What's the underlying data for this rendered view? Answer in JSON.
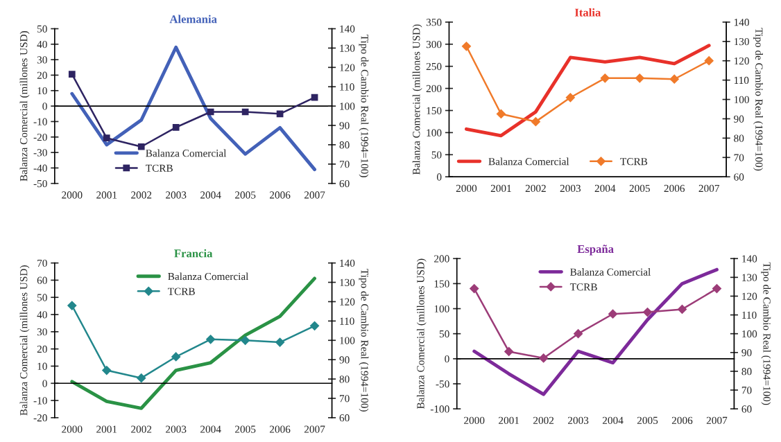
{
  "chart_data": [
    {
      "type": "line",
      "title": "Alemania",
      "categories": [
        "2000",
        "2001",
        "2002",
        "2003",
        "2004",
        "2005",
        "2006",
        "2007"
      ],
      "ylabel": "Balanza Comercial (millones USD)",
      "y2label": "Tipo de Cambio Real (1994=100)",
      "ylim": [
        -50,
        50
      ],
      "yticks": [
        -50,
        -40,
        -30,
        -20,
        -10,
        0,
        10,
        20,
        30,
        40,
        50
      ],
      "y2lim": [
        60,
        140
      ],
      "y2ticks": [
        60,
        70,
        80,
        90,
        100,
        110,
        120,
        130,
        140
      ],
      "legend": "bottom",
      "series": [
        {
          "name": "Balanza Comercial",
          "color": "#4361b8",
          "marker": "none",
          "values": [
            8,
            -25,
            -9,
            38,
            -8,
            -31,
            -14,
            -41
          ]
        },
        {
          "name": "TCRB",
          "color": "#2e2462",
          "marker": "square",
          "axis": "y2",
          "values": [
            116.5,
            83.5,
            79,
            89,
            97,
            97,
            96,
            104.5
          ]
        }
      ]
    },
    {
      "type": "line",
      "title": "Italia",
      "categories": [
        "2000",
        "2001",
        "2002",
        "2003",
        "2004",
        "2005",
        "2006",
        "2007"
      ],
      "ylabel": "Balanza Comercial (millones USD)",
      "y2label": "Tipo de Cambio Real (1994=100)",
      "ylim": [
        0,
        350
      ],
      "yticks": [
        0,
        50,
        100,
        150,
        200,
        250,
        300,
        350
      ],
      "y2lim": [
        60,
        140
      ],
      "y2ticks": [
        60,
        70,
        80,
        90,
        100,
        110,
        120,
        130,
        140
      ],
      "legend": "bottom left",
      "series": [
        {
          "name": "Balanza Comercial",
          "color": "#e8312a",
          "marker": "none",
          "values": [
            108,
            93,
            147,
            270,
            260,
            270,
            256,
            297
          ]
        },
        {
          "name": "TCRB",
          "color": "#f07a2a",
          "marker": "diamond",
          "axis": "y2",
          "values": [
            127.5,
            92.5,
            88.5,
            101,
            111,
            111,
            110.5,
            120
          ]
        }
      ]
    },
    {
      "type": "line",
      "title": "Francia",
      "categories": [
        "2000",
        "2001",
        "2002",
        "2003",
        "2004",
        "2005",
        "2006",
        "2007"
      ],
      "ylabel": "Balanza Comercial (millones USD)",
      "y2label": "Tipo de Cambio Real (1994=100)",
      "ylim": [
        -20,
        70
      ],
      "yticks": [
        -20,
        -10,
        0,
        10,
        20,
        30,
        40,
        50,
        60,
        70
      ],
      "y2lim": [
        60,
        140
      ],
      "y2ticks": [
        60,
        70,
        80,
        90,
        100,
        110,
        120,
        130,
        140
      ],
      "legend": "top",
      "series": [
        {
          "name": "Balanza Comercial",
          "color": "#2a9245",
          "marker": "none",
          "values": [
            1,
            -10.5,
            -14.5,
            7.5,
            12,
            28,
            39,
            61
          ]
        },
        {
          "name": "TCRB",
          "color": "#22878c",
          "marker": "diamond",
          "axis": "y2",
          "values": [
            118,
            84.5,
            80.5,
            91.5,
            100.5,
            100,
            99,
            107.5
          ]
        }
      ]
    },
    {
      "type": "line",
      "title": "España",
      "categories": [
        "2000",
        "2001",
        "2002",
        "2003",
        "2004",
        "2005",
        "2006",
        "2007"
      ],
      "ylabel": "Balanza Comercial (millones USD)",
      "y2label": "Tipo de Cambio Real (1994=100)",
      "ylim": [
        -100,
        200
      ],
      "yticks": [
        -100,
        -50,
        0,
        50,
        100,
        150,
        200
      ],
      "y2lim": [
        60,
        140
      ],
      "y2ticks": [
        60,
        70,
        80,
        90,
        100,
        110,
        120,
        130,
        140
      ],
      "legend": "top",
      "series": [
        {
          "name": "Balanza Comercial",
          "color": "#7d2a9a",
          "marker": "none",
          "values": [
            15,
            -30,
            -71,
            15,
            -8,
            78,
            150,
            178
          ]
        },
        {
          "name": "TCRB",
          "color": "#9c3c78",
          "marker": "diamond",
          "axis": "y2",
          "values": [
            124,
            90.5,
            87,
            100,
            110.5,
            111.5,
            113,
            124
          ]
        }
      ]
    }
  ]
}
